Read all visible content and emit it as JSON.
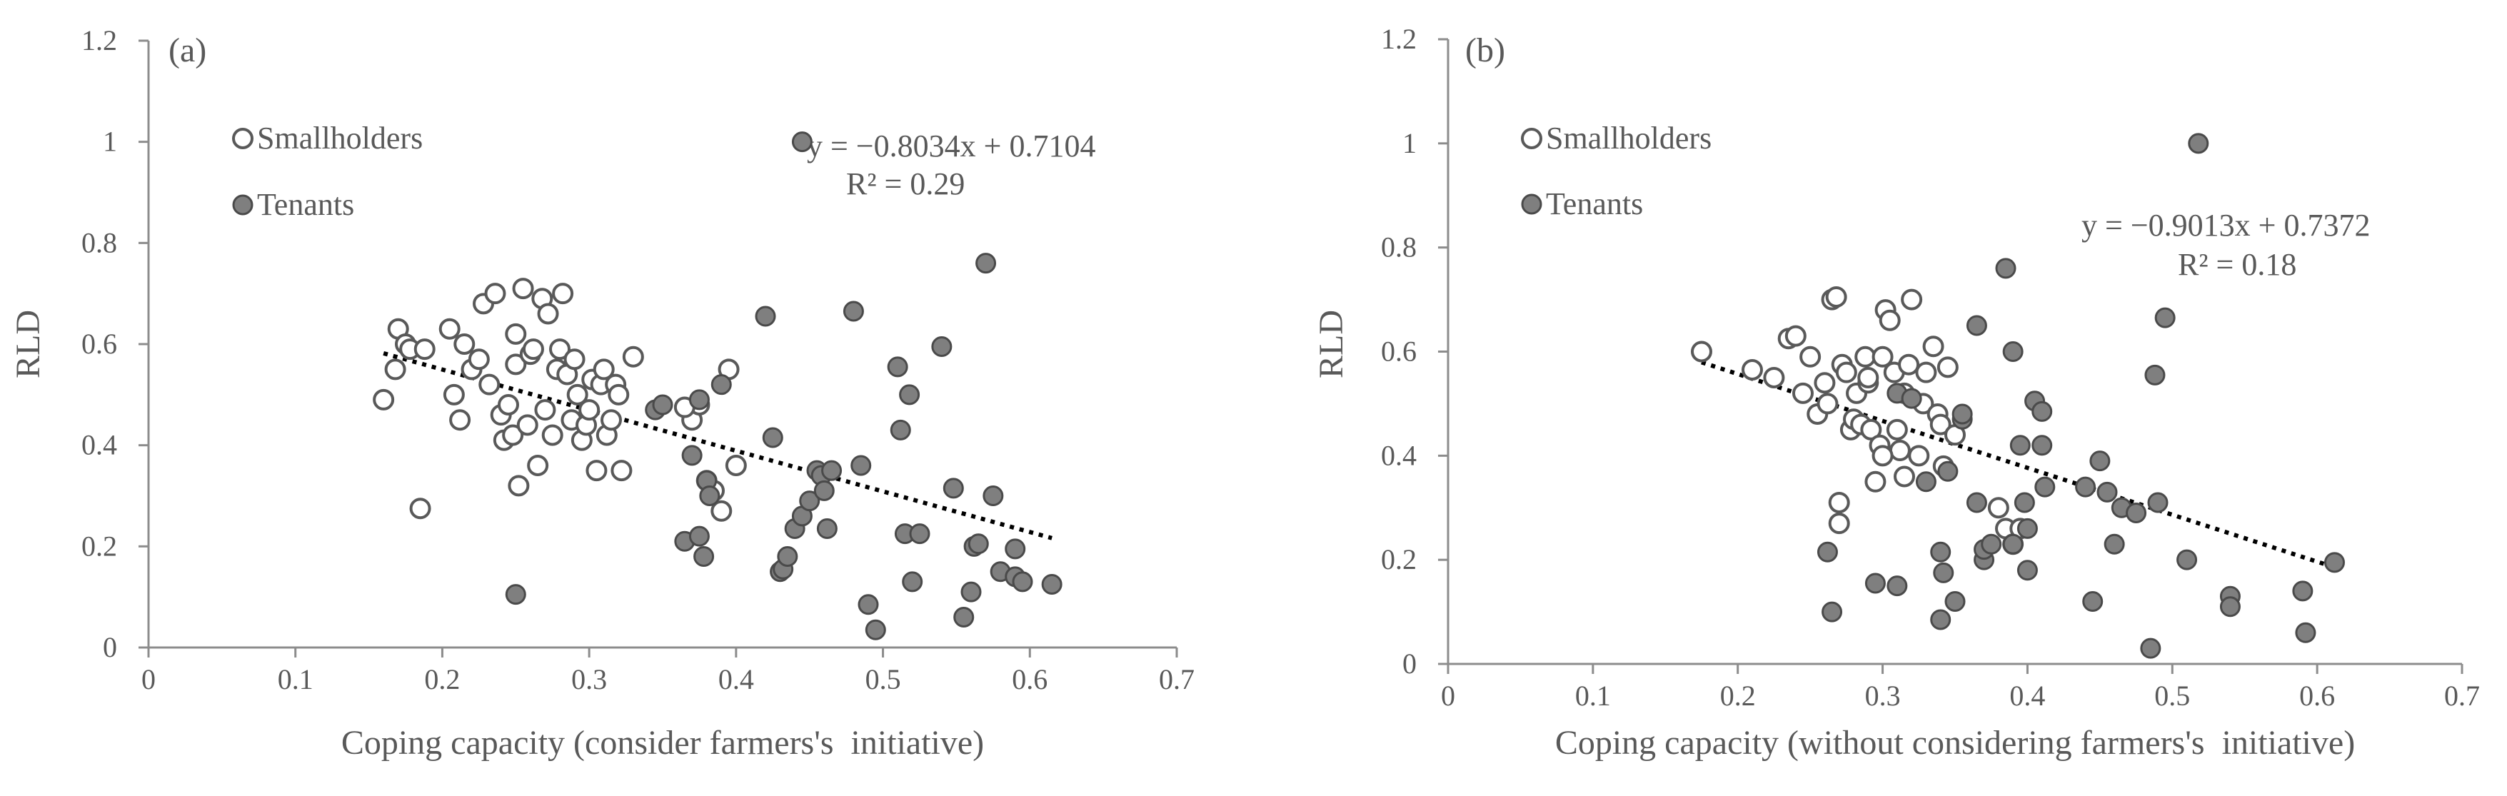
{
  "chart_data": [
    {
      "type": "scatter",
      "title": "",
      "panel_label": "(a)",
      "xlabel": "Coping capacity (consider farmers's  initiative)",
      "ylabel": "RLD",
      "xlim": [
        0,
        0.7
      ],
      "ylim": [
        0,
        1.2
      ],
      "xticks": [
        "0",
        "0.1",
        "0.2",
        "0.3",
        "0.4",
        "0.5",
        "0.6",
        "0.7"
      ],
      "yticks": [
        "0",
        "0.2",
        "0.4",
        "0.6",
        "0.8",
        "1",
        "1.2"
      ],
      "grid": false,
      "legend_position": "top-left",
      "trendline": {
        "equation": "y = −0.8034x + 0.7104",
        "r2": "R² = 0.29",
        "slope": -0.8034,
        "intercept": 0.7104,
        "x_range": [
          0.16,
          0.615
        ],
        "style": "dotted"
      },
      "series": [
        {
          "name": "Smallholders",
          "marker": "open-circle",
          "color": "#ffffff",
          "x": [
            0.16,
            0.168,
            0.17,
            0.175,
            0.178,
            0.185,
            0.188,
            0.205,
            0.208,
            0.212,
            0.215,
            0.22,
            0.225,
            0.228,
            0.232,
            0.236,
            0.24,
            0.242,
            0.245,
            0.248,
            0.25,
            0.25,
            0.252,
            0.255,
            0.258,
            0.26,
            0.262,
            0.265,
            0.268,
            0.27,
            0.272,
            0.275,
            0.278,
            0.28,
            0.282,
            0.285,
            0.288,
            0.29,
            0.292,
            0.295,
            0.298,
            0.3,
            0.302,
            0.305,
            0.308,
            0.31,
            0.312,
            0.315,
            0.318,
            0.32,
            0.322,
            0.33,
            0.37,
            0.375,
            0.38,
            0.385,
            0.39,
            0.395,
            0.4,
            0.365
          ],
          "y": [
            0.49,
            0.55,
            0.63,
            0.6,
            0.59,
            0.275,
            0.59,
            0.63,
            0.5,
            0.45,
            0.6,
            0.55,
            0.57,
            0.68,
            0.52,
            0.7,
            0.46,
            0.41,
            0.48,
            0.42,
            0.62,
            0.56,
            0.32,
            0.71,
            0.44,
            0.58,
            0.59,
            0.36,
            0.69,
            0.47,
            0.66,
            0.42,
            0.55,
            0.59,
            0.7,
            0.54,
            0.45,
            0.57,
            0.5,
            0.41,
            0.44,
            0.47,
            0.53,
            0.35,
            0.52,
            0.55,
            0.42,
            0.45,
            0.52,
            0.5,
            0.35,
            0.575,
            0.45,
            0.48,
            0.33,
            0.31,
            0.27,
            0.55,
            0.36,
            0.475
          ]
        },
        {
          "name": "Tenants",
          "marker": "filled-circle",
          "color": "#7f7f7f",
          "x": [
            0.25,
            0.345,
            0.35,
            0.365,
            0.37,
            0.375,
            0.375,
            0.378,
            0.38,
            0.382,
            0.39,
            0.42,
            0.425,
            0.43,
            0.432,
            0.435,
            0.44,
            0.445,
            0.445,
            0.45,
            0.455,
            0.458,
            0.46,
            0.462,
            0.465,
            0.48,
            0.485,
            0.49,
            0.495,
            0.51,
            0.512,
            0.515,
            0.518,
            0.52,
            0.525,
            0.54,
            0.548,
            0.555,
            0.56,
            0.562,
            0.565,
            0.57,
            0.575,
            0.58,
            0.59,
            0.59,
            0.595,
            0.615
          ],
          "y": [
            0.105,
            0.47,
            0.48,
            0.21,
            0.38,
            0.22,
            0.49,
            0.18,
            0.33,
            0.3,
            0.52,
            0.655,
            0.415,
            0.15,
            0.155,
            0.18,
            0.235,
            0.26,
            1.0,
            0.29,
            0.35,
            0.34,
            0.31,
            0.235,
            0.35,
            0.665,
            0.36,
            0.085,
            0.035,
            0.555,
            0.43,
            0.225,
            0.5,
            0.13,
            0.225,
            0.595,
            0.315,
            0.06,
            0.11,
            0.2,
            0.205,
            0.76,
            0.3,
            0.15,
            0.14,
            0.195,
            0.13,
            0.125
          ]
        }
      ]
    },
    {
      "type": "scatter",
      "title": "",
      "panel_label": "(b)",
      "xlabel": "Coping capacity (without considering farmers's  initiative)",
      "ylabel": "RLD",
      "xlim": [
        0,
        0.7
      ],
      "ylim": [
        0,
        1.2
      ],
      "xticks": [
        "0",
        "0.1",
        "0.2",
        "0.3",
        "0.4",
        "0.5",
        "0.6",
        "0.7"
      ],
      "yticks": [
        "0",
        "0.2",
        "0.4",
        "0.6",
        "0.8",
        "1",
        "1.2"
      ],
      "grid": false,
      "legend_position": "top-left",
      "trendline": {
        "equation": "y = −0.9013x + 0.7372",
        "r2": "R² = 0.18",
        "slope": -0.9013,
        "intercept": 0.7372,
        "x_range": [
          0.175,
          0.612
        ],
        "style": "dotted"
      },
      "series": [
        {
          "name": "Smallholders",
          "marker": "open-circle",
          "color": "#ffffff",
          "x": [
            0.175,
            0.21,
            0.225,
            0.235,
            0.24,
            0.245,
            0.25,
            0.255,
            0.26,
            0.262,
            0.265,
            0.268,
            0.27,
            0.27,
            0.272,
            0.275,
            0.278,
            0.28,
            0.282,
            0.285,
            0.288,
            0.29,
            0.29,
            0.292,
            0.295,
            0.298,
            0.3,
            0.302,
            0.305,
            0.308,
            0.31,
            0.312,
            0.315,
            0.318,
            0.32,
            0.325,
            0.328,
            0.33,
            0.335,
            0.338,
            0.34,
            0.342,
            0.345,
            0.35,
            0.38,
            0.385,
            0.39,
            0.395,
            0.3,
            0.315
          ],
          "y": [
            0.6,
            0.565,
            0.55,
            0.625,
            0.63,
            0.52,
            0.59,
            0.48,
            0.54,
            0.5,
            0.7,
            0.705,
            0.31,
            0.27,
            0.575,
            0.56,
            0.45,
            0.47,
            0.52,
            0.46,
            0.59,
            0.54,
            0.55,
            0.45,
            0.35,
            0.42,
            0.59,
            0.68,
            0.66,
            0.56,
            0.45,
            0.41,
            0.52,
            0.575,
            0.7,
            0.4,
            0.5,
            0.56,
            0.61,
            0.48,
            0.46,
            0.38,
            0.57,
            0.44,
            0.3,
            0.26,
            0.23,
            0.26,
            0.4,
            0.36
          ]
        },
        {
          "name": "Tenants",
          "marker": "filled-circle",
          "color": "#7f7f7f",
          "x": [
            0.262,
            0.265,
            0.295,
            0.31,
            0.31,
            0.32,
            0.33,
            0.34,
            0.34,
            0.342,
            0.345,
            0.35,
            0.355,
            0.355,
            0.365,
            0.365,
            0.37,
            0.37,
            0.375,
            0.385,
            0.39,
            0.39,
            0.395,
            0.398,
            0.4,
            0.4,
            0.405,
            0.41,
            0.41,
            0.412,
            0.44,
            0.445,
            0.45,
            0.455,
            0.46,
            0.465,
            0.475,
            0.485,
            0.488,
            0.49,
            0.495,
            0.51,
            0.518,
            0.54,
            0.54,
            0.59,
            0.592,
            0.612
          ],
          "y": [
            0.215,
            0.1,
            0.155,
            0.15,
            0.52,
            0.51,
            0.35,
            0.215,
            0.085,
            0.175,
            0.37,
            0.12,
            0.47,
            0.48,
            0.31,
            0.65,
            0.2,
            0.22,
            0.23,
            0.76,
            0.6,
            0.23,
            0.42,
            0.31,
            0.26,
            0.18,
            0.505,
            0.485,
            0.42,
            0.34,
            0.34,
            0.12,
            0.39,
            0.33,
            0.23,
            0.3,
            0.29,
            0.03,
            0.555,
            0.31,
            0.665,
            0.2,
            1.0,
            0.13,
            0.11,
            0.14,
            0.06,
            0.195
          ]
        }
      ]
    }
  ]
}
